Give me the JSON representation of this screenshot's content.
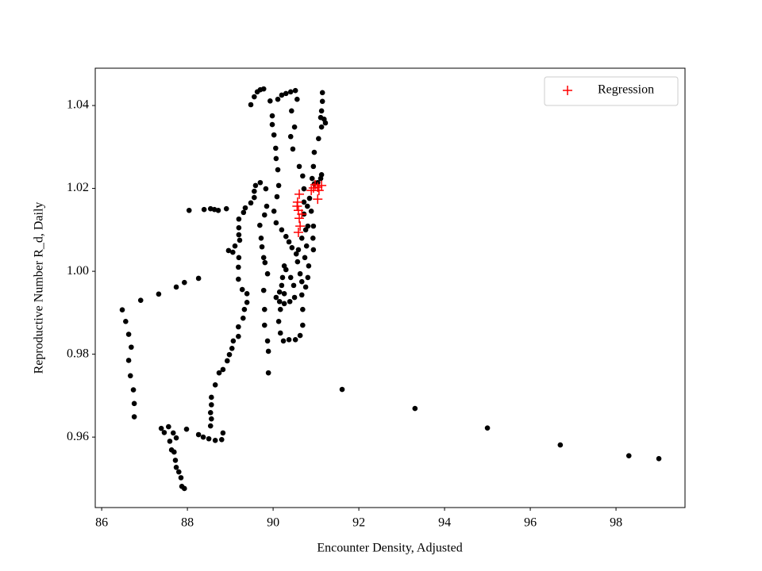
{
  "chart_data": {
    "type": "scatter",
    "xlabel": "Encounter Density, Adjusted",
    "ylabel": "Reproductive Number R_d, Daily",
    "xlim": [
      85.85,
      99.61
    ],
    "ylim": [
      0.943,
      1.049
    ],
    "xticks": [
      86,
      88,
      90,
      92,
      94,
      96,
      98
    ],
    "yticks": [
      0.96,
      0.98,
      {
        "value": 1,
        "label": "1.00"
      },
      1.02,
      1.04
    ],
    "legend": "upper right",
    "series": [
      {
        "color": "#000000",
        "marker": "o",
        "x": [
          88.26,
          87.93,
          87.74,
          87.33,
          86.91,
          86.48,
          86.56,
          86.63,
          86.69,
          86.63,
          86.67,
          86.74,
          86.76,
          86.76,
          91.61,
          93.31,
          95.0,
          96.7,
          98.3,
          99.0,
          87.39,
          87.46,
          87.56,
          87.67,
          87.74,
          87.59,
          87.63,
          87.69,
          87.72,
          87.74,
          87.8,
          87.85,
          87.87,
          87.93,
          87.98,
          88.26,
          88.37,
          88.5,
          88.65,
          88.8,
          88.83,
          88.54,
          88.56,
          88.54,
          88.56,
          88.56,
          88.65,
          88.74,
          88.83,
          88.93,
          88.98,
          89.04,
          89.07,
          89.19,
          89.19,
          89.3,
          89.33,
          89.39,
          89.39,
          89.28,
          89.19,
          89.19,
          89.2,
          89.06,
          88.96,
          89.11,
          89.22,
          89.2,
          89.2,
          89.2,
          89.31,
          89.35,
          89.48,
          89.56,
          89.56,
          89.59,
          89.7,
          88.04,
          88.39,
          88.54,
          88.63,
          88.72,
          88.91,
          89.83,
          89.85,
          89.8,
          89.69,
          89.72,
          89.74,
          89.78,
          89.81,
          89.87,
          89.78,
          89.8,
          89.8,
          89.87,
          89.89,
          89.89,
          89.48,
          89.56,
          89.63,
          89.7,
          89.78,
          89.93,
          89.98,
          89.98,
          90.02,
          90.06,
          90.07,
          90.11,
          90.13,
          90.09,
          90.02,
          90.07,
          90.2,
          90.3,
          90.37,
          90.44,
          90.54,
          90.11,
          90.2,
          90.3,
          90.41,
          90.52,
          90.56,
          90.43,
          90.5,
          90.41,
          90.46,
          90.61,
          90.69,
          90.72,
          90.85,
          90.89,
          90.94,
          90.93,
          90.94,
          90.83,
          90.81,
          90.76,
          90.67,
          90.69,
          90.69,
          90.63,
          90.52,
          90.37,
          90.24,
          90.17,
          90.13,
          90.17,
          90.15,
          90.22,
          90.26,
          91.15,
          91.15,
          91.13,
          91.11,
          91.19,
          91.22,
          91.13,
          91.06,
          90.96,
          90.94,
          90.91,
          90.96,
          91.04,
          91.11,
          91.13,
          90.72,
          90.72,
          90.76,
          90.67,
          90.59,
          90.57,
          90.63,
          90.67,
          90.8,
          90.81,
          90.78,
          90.74,
          90.07,
          90.15,
          90.26,
          90.39,
          90.5,
          90.48,
          90.41,
          90.3,
          90.2,
          90.26
        ],
        "y": [
          0.9983,
          0.9973,
          0.9962,
          0.9945,
          0.993,
          0.9907,
          0.9879,
          0.9848,
          0.9817,
          0.9785,
          0.9748,
          0.9714,
          0.9681,
          0.9649,
          0.9715,
          0.9669,
          0.9622,
          0.9581,
          0.9555,
          0.9548,
          0.9621,
          0.9611,
          0.9625,
          0.961,
          0.9598,
          0.959,
          0.9569,
          0.9564,
          0.9544,
          0.9527,
          0.9516,
          0.9502,
          0.9481,
          0.9476,
          0.9619,
          0.9606,
          0.96,
          0.9596,
          0.9592,
          0.9594,
          0.961,
          0.9627,
          0.9644,
          0.9659,
          0.9678,
          0.9696,
          0.9726,
          0.9755,
          0.9763,
          0.9784,
          0.9799,
          0.9814,
          0.9832,
          0.9843,
          0.9866,
          0.9887,
          0.9908,
          0.9925,
          0.9946,
          0.9956,
          0.9981,
          1.001,
          1.0033,
          1.0046,
          1.005,
          1.0061,
          1.0075,
          1.0088,
          1.0105,
          1.0126,
          1.0142,
          1.0153,
          1.0165,
          1.0178,
          1.0193,
          1.0207,
          1.0214,
          1.0147,
          1.0149,
          1.0151,
          1.0149,
          1.0147,
          1.0151,
          1.0199,
          1.0157,
          1.0136,
          1.0111,
          1.008,
          1.0059,
          1.0033,
          1.0021,
          0.9994,
          0.9954,
          0.9908,
          0.987,
          0.9832,
          0.9807,
          0.9755,
          1.0402,
          1.0421,
          1.0433,
          1.0438,
          1.044,
          1.0411,
          1.0375,
          1.0354,
          1.0329,
          1.0297,
          1.0272,
          1.0245,
          1.0207,
          1.018,
          1.0145,
          1.0117,
          1.01,
          1.0084,
          1.0071,
          1.0057,
          1.0042,
          1.0415,
          1.0425,
          1.0429,
          1.0433,
          1.0436,
          1.0415,
          1.0387,
          1.0348,
          1.0325,
          1.0295,
          1.0253,
          1.023,
          1.0199,
          1.0176,
          1.0145,
          1.0109,
          1.008,
          1.0052,
          1.0013,
          0.9985,
          0.9962,
          0.9943,
          0.9908,
          0.987,
          0.9845,
          0.9835,
          0.9835,
          0.9832,
          0.9851,
          0.9879,
          0.9908,
          0.995,
          0.9985,
          1.0013,
          1.0431,
          1.041,
          1.0387,
          1.0371,
          1.0367,
          1.0358,
          1.0348,
          1.032,
          1.0287,
          1.0253,
          1.0224,
          1.0211,
          1.0214,
          1.0224,
          1.0233,
          1.0167,
          1.0138,
          1.01,
          1.008,
          1.0052,
          1.0023,
          0.9994,
          0.9975,
          1.0157,
          1.0109,
          1.0061,
          1.0033,
          0.9937,
          0.9927,
          0.9922,
          0.9927,
          0.9937,
          0.9966,
          0.9985,
          1.0004,
          0.9966,
          0.9946
        ]
      },
      {
        "name": "Regression",
        "color": "#ff0000",
        "marker": "+",
        "x": [
          90.57,
          90.59,
          90.61,
          90.63,
          90.59,
          90.56,
          90.67,
          90.61,
          90.94,
          91.04,
          91.13,
          91.07,
          91.04,
          90.89,
          90.98
        ],
        "y": [
          1.0167,
          1.0147,
          1.0128,
          1.0109,
          1.0094,
          1.0157,
          1.0138,
          1.0186,
          1.0201,
          1.0203,
          1.0207,
          1.0195,
          1.0174,
          1.0195,
          1.0209
        ]
      }
    ]
  }
}
